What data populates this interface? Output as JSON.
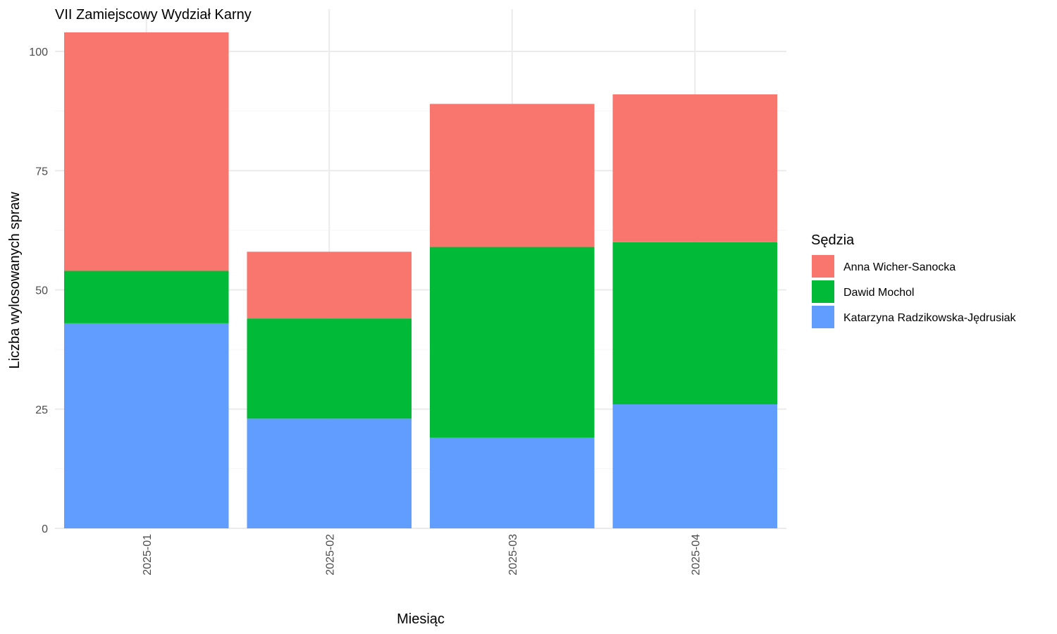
{
  "chart_data": {
    "type": "bar",
    "stacked": true,
    "title": "VII Zamiejscowy Wydział Karny",
    "xlabel": "Miesiąc",
    "ylabel": "Liczba wylosowanych spraw",
    "categories": [
      "2025-01",
      "2025-02",
      "2025-03",
      "2025-04"
    ],
    "ylim": [
      0,
      105
    ],
    "yticks": [
      0,
      25,
      50,
      75,
      100
    ],
    "grid": true,
    "legend": {
      "title": "Sędzia",
      "position": "right"
    },
    "series": [
      {
        "name": "Katarzyna Radzikowska-Jędrusiak",
        "color": "#619cff",
        "values": [
          43,
          23,
          19,
          26
        ]
      },
      {
        "name": "Dawid Mochol",
        "color": "#00ba38",
        "values": [
          11,
          21,
          40,
          34
        ]
      },
      {
        "name": "Anna Wicher-Sanocka",
        "color": "#f8766d",
        "values": [
          50,
          14,
          30,
          31
        ]
      }
    ],
    "legend_order": [
      "Anna Wicher-Sanocka",
      "Dawid Mochol",
      "Katarzyna Radzikowska-Jędrusiak"
    ]
  }
}
